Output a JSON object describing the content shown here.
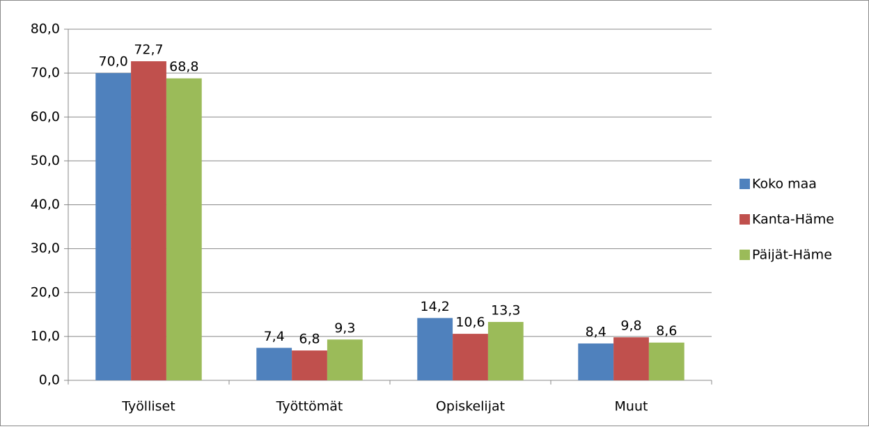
{
  "chart_data": {
    "type": "bar",
    "categories": [
      "Työlliset",
      "Työttömät",
      "Opiskelijat",
      "Muut"
    ],
    "series": [
      {
        "name": "Koko maa",
        "color": "#4f81bd",
        "values": [
          70.0,
          7.4,
          14.2,
          8.4
        ],
        "value_labels": [
          "70,0",
          "7,4",
          "14,2",
          "8,4"
        ]
      },
      {
        "name": "Kanta-Häme",
        "color": "#c0504d",
        "values": [
          72.7,
          6.8,
          10.6,
          9.8
        ],
        "value_labels": [
          "72,7",
          "6,8",
          "10,6",
          "9,8"
        ]
      },
      {
        "name": "Päijät-Häme",
        "color": "#9bbb59",
        "values": [
          68.8,
          9.3,
          13.3,
          8.6
        ],
        "value_labels": [
          "68,8",
          "9,3",
          "13,3",
          "8,6"
        ]
      }
    ],
    "ylim": [
      0,
      80
    ],
    "yticks": [
      {
        "value": 0,
        "label": "0,0"
      },
      {
        "value": 10,
        "label": "10,0"
      },
      {
        "value": 20,
        "label": "20,0"
      },
      {
        "value": 30,
        "label": "30,0"
      },
      {
        "value": 40,
        "label": "40,0"
      },
      {
        "value": 50,
        "label": "50,0"
      },
      {
        "value": 60,
        "label": "60,0"
      },
      {
        "value": 70,
        "label": "70,0"
      },
      {
        "value": 80,
        "label": "80,0"
      }
    ],
    "grid": true,
    "legend": "right"
  }
}
